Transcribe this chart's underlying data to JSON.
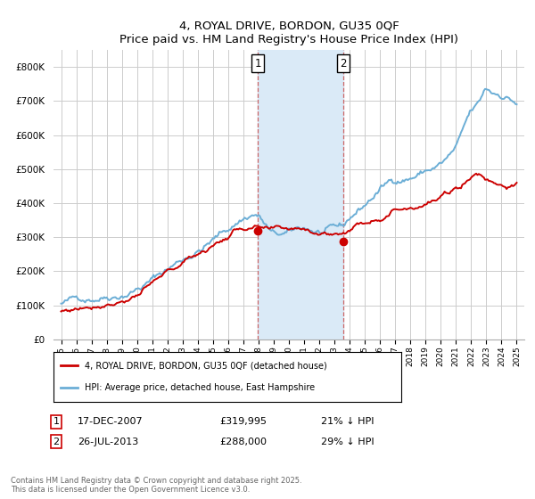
{
  "title": "4, ROYAL DRIVE, BORDON, GU35 0QF",
  "subtitle": "Price paid vs. HM Land Registry's House Price Index (HPI)",
  "legend_line1": "4, ROYAL DRIVE, BORDON, GU35 0QF (detached house)",
  "legend_line2": "HPI: Average price, detached house, East Hampshire",
  "footnote": "Contains HM Land Registry data © Crown copyright and database right 2025.\nThis data is licensed under the Open Government Licence v3.0.",
  "purchase1_label": "1",
  "purchase1_date": "17-DEC-2007",
  "purchase1_price": "£319,995",
  "purchase1_hpi": "21% ↓ HPI",
  "purchase2_label": "2",
  "purchase2_date": "26-JUL-2013",
  "purchase2_price": "£288,000",
  "purchase2_hpi": "29% ↓ HPI",
  "purchase1_x": 2007.96,
  "purchase2_x": 2013.57,
  "purchase1_y": 319995,
  "purchase2_y": 288000,
  "shade_x1": 2007.96,
  "shade_x2": 2013.57,
  "hpi_color": "#6baed6",
  "price_color": "#cc0000",
  "shade_color": "#daeaf7",
  "dashed_color": "#cc6666",
  "marker_color": "#cc0000",
  "ylim": [
    0,
    850000
  ],
  "xlim": [
    1994.5,
    2025.5
  ],
  "background_color": "#ffffff",
  "grid_color": "#cccccc",
  "hpi_key_years": [
    1995,
    1996,
    1997,
    1998,
    1999,
    2000,
    2001,
    2002,
    2003,
    2004,
    2005,
    2006,
    2007,
    2007.8,
    2008.5,
    2009,
    2010,
    2011,
    2012,
    2013,
    2013.5,
    2014,
    2015,
    2016,
    2017,
    2018,
    2019,
    2020,
    2021,
    2022,
    2022.5,
    2023,
    2023.5,
    2024,
    2025
  ],
  "hpi_key_vals": [
    105000,
    115000,
    128000,
    145000,
    162000,
    185000,
    210000,
    240000,
    270000,
    300000,
    330000,
    360000,
    395000,
    410000,
    375000,
    345000,
    340000,
    350000,
    340000,
    335000,
    335000,
    360000,
    400000,
    445000,
    475000,
    490000,
    510000,
    530000,
    570000,
    660000,
    680000,
    720000,
    710000,
    710000,
    690000
  ],
  "price_key_years": [
    1995,
    1996,
    1997,
    1998,
    1999,
    2000,
    2001,
    2002,
    2003,
    2004,
    2005,
    2006,
    2007,
    2007.9,
    2008.5,
    2009,
    2010,
    2011,
    2012,
    2013,
    2013.5,
    2014,
    2015,
    2016,
    2017,
    2018,
    2019,
    2020,
    2021,
    2022,
    2022.5,
    2023,
    2024,
    2025
  ],
  "price_key_vals": [
    82000,
    90000,
    102000,
    118000,
    132000,
    152000,
    173000,
    197000,
    220000,
    248000,
    273000,
    300000,
    325000,
    320000,
    305000,
    295000,
    290000,
    295000,
    290000,
    288000,
    292000,
    305000,
    325000,
    350000,
    375000,
    390000,
    408000,
    420000,
    440000,
    480000,
    490000,
    475000,
    465000,
    460000
  ],
  "hpi_noise_seed": 42,
  "price_noise_seed": 77,
  "hpi_noise_scale": 3500,
  "price_noise_scale": 2500
}
